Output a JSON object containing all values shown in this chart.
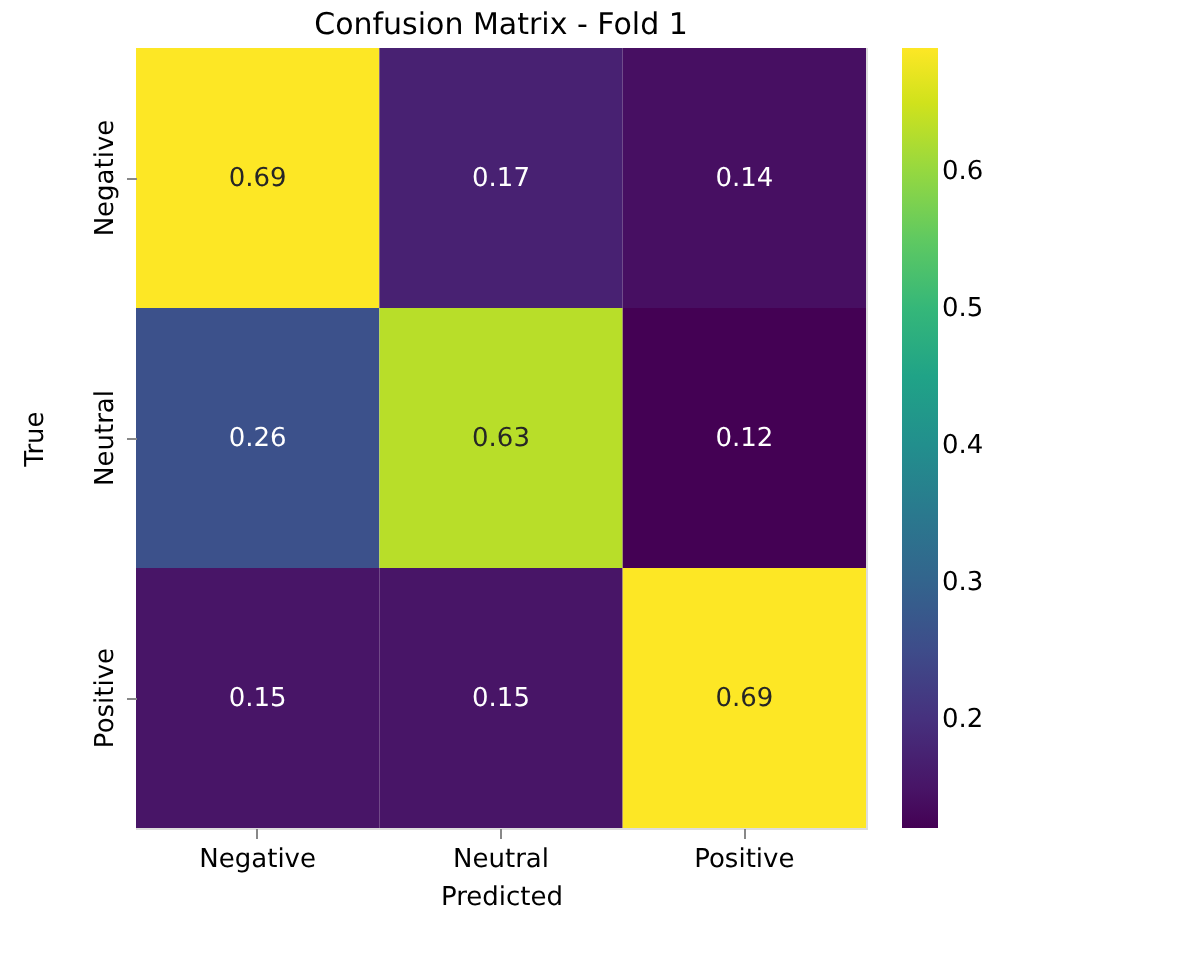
{
  "chart_data": {
    "type": "heatmap",
    "title": "Confusion Matrix - Fold 1",
    "xlabel": "Predicted",
    "ylabel": "True",
    "categories": [
      "Negative",
      "Neutral",
      "Positive"
    ],
    "y_categories": [
      "Negative",
      "Neutral",
      "Positive"
    ],
    "cells": [
      [
        0.69,
        0.17,
        0.14
      ],
      [
        0.26,
        0.63,
        0.12
      ],
      [
        0.15,
        0.15,
        0.69
      ]
    ],
    "clim": [
      0.12,
      0.69
    ],
    "cticks": [
      0.2,
      0.3,
      0.4,
      0.5,
      0.6
    ],
    "data_labels": true
  }
}
